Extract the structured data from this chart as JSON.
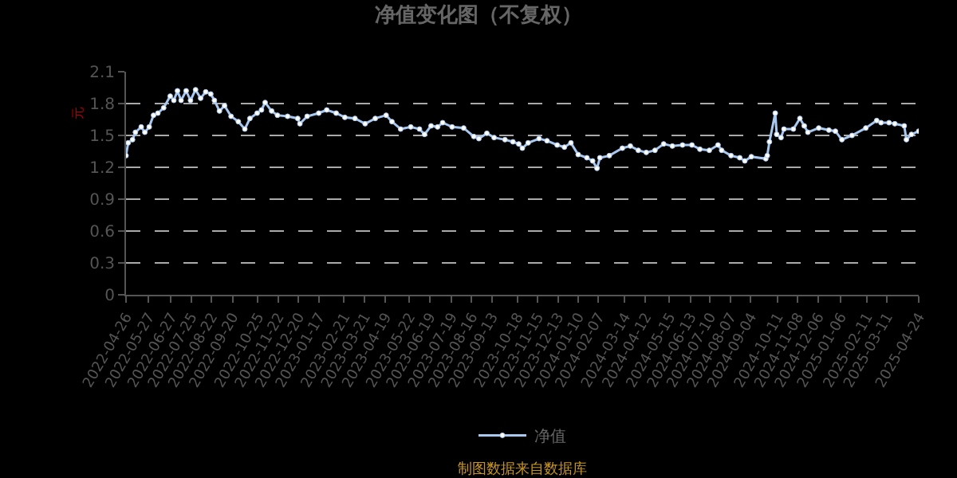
{
  "chart_data": {
    "type": "line",
    "title": "净值变化图（不复权）",
    "ylabel": "元",
    "annotations": [
      "制图数据来自数据库"
    ],
    "x": [
      "2022-04-26",
      "2022-04-29",
      "2022-05-05",
      "2022-05-09",
      "2022-05-17",
      "2022-05-22",
      "2022-05-28",
      "2022-06-03",
      "2022-06-09",
      "2022-06-17",
      "2022-06-26",
      "2022-07-01",
      "2022-07-06",
      "2022-07-11",
      "2022-07-18",
      "2022-07-24",
      "2022-07-31",
      "2022-08-07",
      "2022-08-14",
      "2022-08-21",
      "2022-08-26",
      "2022-09-02",
      "2022-09-09",
      "2022-09-18",
      "2022-09-28",
      "2022-10-07",
      "2022-10-14",
      "2022-10-24",
      "2022-10-30",
      "2022-11-04",
      "2022-11-13",
      "2022-11-21",
      "2022-12-05",
      "2022-12-19",
      "2022-12-22",
      "2023-01-01",
      "2023-01-17",
      "2023-01-28",
      "2023-02-10",
      "2023-02-22",
      "2023-03-08",
      "2023-03-22",
      "2023-04-05",
      "2023-04-20",
      "2023-04-28",
      "2023-05-10",
      "2023-05-24",
      "2023-06-05",
      "2023-06-12",
      "2023-06-21",
      "2023-06-30",
      "2023-07-07",
      "2023-07-20",
      "2023-08-05",
      "2023-08-19",
      "2023-08-26",
      "2023-09-06",
      "2023-09-16",
      "2023-10-01",
      "2023-10-12",
      "2023-10-20",
      "2023-10-25",
      "2023-11-02",
      "2023-11-17",
      "2023-11-28",
      "2023-12-12",
      "2023-12-22",
      "2023-12-31",
      "2024-01-10",
      "2024-01-22",
      "2024-01-30",
      "2024-02-05",
      "2024-02-09",
      "2024-02-22",
      "2024-03-11",
      "2024-03-22",
      "2024-04-02",
      "2024-04-13",
      "2024-04-25",
      "2024-05-07",
      "2024-05-19",
      "2024-06-02",
      "2024-06-15",
      "2024-06-26",
      "2024-07-09",
      "2024-07-21",
      "2024-07-26",
      "2024-08-08",
      "2024-08-20",
      "2024-08-27",
      "2024-09-05",
      "2024-09-25",
      "2024-09-27",
      "2024-09-30",
      "2024-10-08",
      "2024-10-10",
      "2024-10-16",
      "2024-10-20",
      "2024-11-02",
      "2024-11-11",
      "2024-11-17",
      "2024-11-22",
      "2024-12-07",
      "2024-12-21",
      "2024-12-30",
      "2025-01-08",
      "2025-01-22",
      "2025-02-10",
      "2025-02-25",
      "2025-03-03",
      "2025-03-14",
      "2025-03-22",
      "2025-04-04",
      "2025-04-07",
      "2025-04-14",
      "2025-04-24"
    ],
    "series": [
      {
        "name": "净值",
        "color": "#a8c8f0",
        "values": [
          1.31,
          1.43,
          1.46,
          1.53,
          1.58,
          1.53,
          1.58,
          1.69,
          1.71,
          1.76,
          1.87,
          1.83,
          1.92,
          1.83,
          1.92,
          1.83,
          1.93,
          1.85,
          1.91,
          1.89,
          1.83,
          1.73,
          1.78,
          1.68,
          1.63,
          1.56,
          1.66,
          1.71,
          1.74,
          1.81,
          1.73,
          1.69,
          1.68,
          1.66,
          1.61,
          1.68,
          1.71,
          1.74,
          1.71,
          1.67,
          1.66,
          1.61,
          1.66,
          1.69,
          1.63,
          1.56,
          1.58,
          1.56,
          1.51,
          1.59,
          1.58,
          1.62,
          1.58,
          1.57,
          1.49,
          1.47,
          1.52,
          1.48,
          1.46,
          1.44,
          1.42,
          1.38,
          1.43,
          1.47,
          1.45,
          1.41,
          1.39,
          1.43,
          1.32,
          1.29,
          1.26,
          1.19,
          1.29,
          1.31,
          1.38,
          1.4,
          1.36,
          1.34,
          1.36,
          1.42,
          1.4,
          1.41,
          1.41,
          1.37,
          1.36,
          1.41,
          1.36,
          1.31,
          1.29,
          1.26,
          1.3,
          1.28,
          1.31,
          1.44,
          1.71,
          1.51,
          1.48,
          1.56,
          1.56,
          1.66,
          1.59,
          1.53,
          1.57,
          1.55,
          1.54,
          1.46,
          1.5,
          1.57,
          1.64,
          1.62,
          1.62,
          1.61,
          1.59,
          1.46,
          1.51,
          1.54
        ]
      }
    ],
    "xlim": [
      "2022-04-26",
      "2025-04-24"
    ],
    "xticks": [
      "2022-04-26",
      "2022-05-27",
      "2022-06-27",
      "2022-07-25",
      "2022-08-22",
      "2022-09-20",
      "2022-10-25",
      "2022-11-22",
      "2022-12-20",
      "2023-01-17",
      "2023-02-21",
      "2023-03-21",
      "2023-04-19",
      "2023-05-22",
      "2023-06-19",
      "2023-07-19",
      "2023-08-16",
      "2023-09-13",
      "2023-10-18",
      "2023-11-15",
      "2023-12-13",
      "2024-01-10",
      "2024-02-07",
      "2024-03-14",
      "2024-04-12",
      "2024-05-15",
      "2024-06-13",
      "2024-07-10",
      "2024-08-07",
      "2024-09-04",
      "2024-10-11",
      "2024-11-08",
      "2024-12-06",
      "2025-01-06",
      "2025-02-11",
      "2025-03-11",
      "2025-04-24"
    ],
    "ylim": [
      0,
      2.1
    ],
    "yticks": [
      0,
      0.3,
      0.6,
      0.9,
      1.2,
      1.5,
      1.8,
      2.1
    ],
    "grid": "y",
    "legend": "bottom",
    "marker": "circle",
    "line_style": "solid"
  }
}
